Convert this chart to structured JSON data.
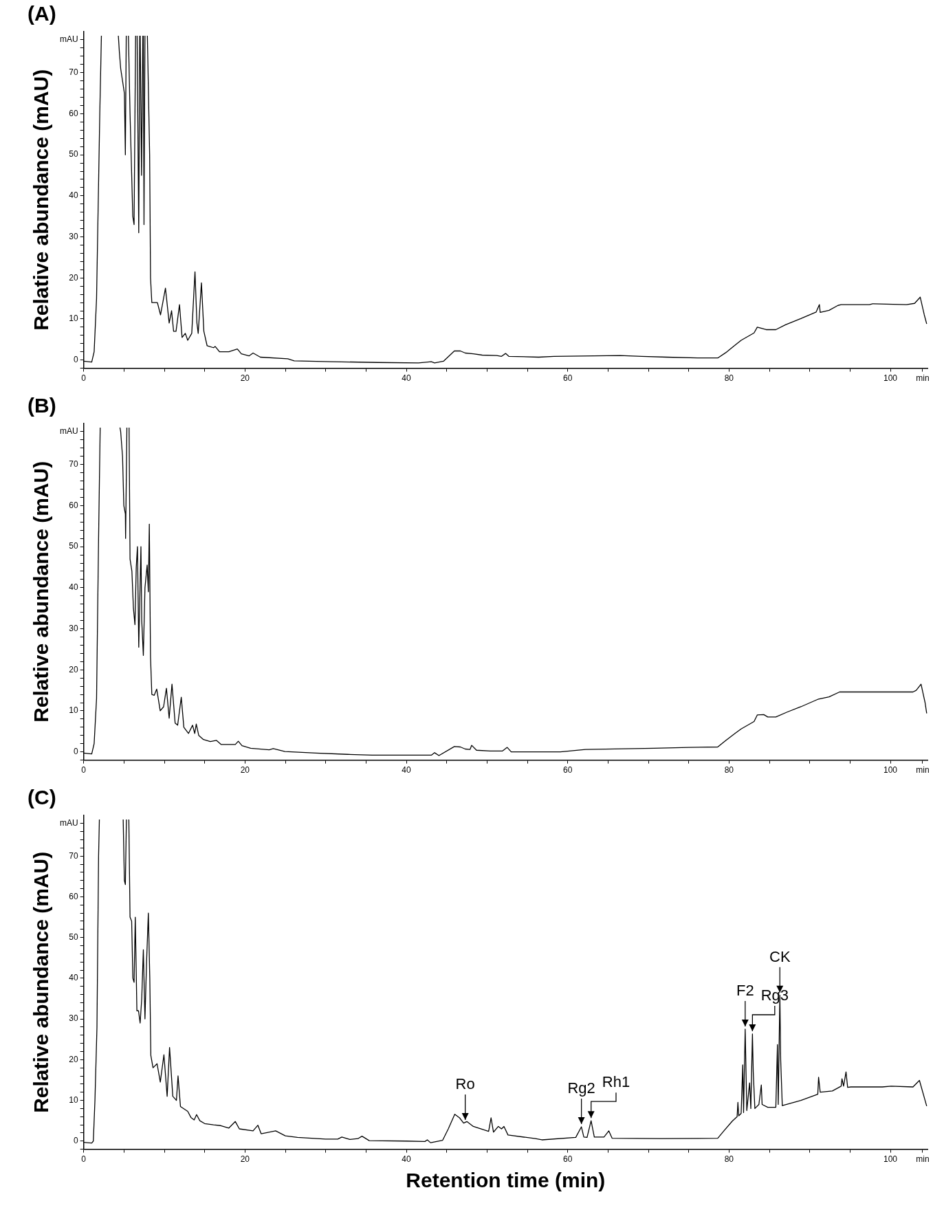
{
  "chart_data": [
    {
      "type": "line",
      "title": "(A)",
      "ylabel": "Relative abundance (mAU)",
      "color": "#000000",
      "grid": false,
      "legend": false,
      "marker": "none",
      "xlim": [
        0,
        104.6
      ],
      "ylim": [
        -2,
        80
      ],
      "xticks": [
        0,
        {
          "value": 5,
          "label": null
        },
        {
          "value": 10,
          "label": null
        },
        {
          "value": 15,
          "label": null
        },
        20,
        {
          "value": 25,
          "label": null
        },
        {
          "value": 30,
          "label": null
        },
        {
          "value": 35,
          "label": null
        },
        40,
        {
          "value": 45,
          "label": null
        },
        {
          "value": 50,
          "label": null
        },
        {
          "value": 55,
          "label": null
        },
        60,
        {
          "value": 65,
          "label": null
        },
        {
          "value": 70,
          "label": null
        },
        {
          "value": 75,
          "label": null
        },
        80,
        {
          "value": 85,
          "label": null
        },
        {
          "value": 90,
          "label": null
        },
        {
          "value": 95,
          "label": null
        },
        100,
        {
          "value": 104,
          "label": "min"
        }
      ],
      "yticks": [
        {
          "value": -2,
          "label": null
        },
        0,
        {
          "value": 2,
          "label": null
        },
        {
          "value": 4,
          "label": null
        },
        {
          "value": 6,
          "label": null
        },
        {
          "value": 8,
          "label": null
        },
        10,
        {
          "value": 12,
          "label": null
        },
        {
          "value": 14,
          "label": null
        },
        {
          "value": 16,
          "label": null
        },
        {
          "value": 18,
          "label": null
        },
        20,
        {
          "value": 22,
          "label": null
        },
        {
          "value": 24,
          "label": null
        },
        {
          "value": 26,
          "label": null
        },
        {
          "value": 28,
          "label": null
        },
        30,
        {
          "value": 32,
          "label": null
        },
        {
          "value": 34,
          "label": null
        },
        {
          "value": 36,
          "label": null
        },
        {
          "value": 38,
          "label": null
        },
        40,
        {
          "value": 42,
          "label": null
        },
        {
          "value": 44,
          "label": null
        },
        {
          "value": 46,
          "label": null
        },
        {
          "value": 48,
          "label": null
        },
        50,
        {
          "value": 52,
          "label": null
        },
        {
          "value": 54,
          "label": null
        },
        {
          "value": 56,
          "label": null
        },
        {
          "value": 58,
          "label": null
        },
        60,
        {
          "value": 62,
          "label": null
        },
        {
          "value": 64,
          "label": null
        },
        {
          "value": 66,
          "label": null
        },
        {
          "value": 68,
          "label": null
        },
        70,
        {
          "value": 72,
          "label": null
        },
        {
          "value": 74,
          "label": null
        },
        {
          "value": 76,
          "label": null
        },
        {
          "value": 78,
          "label": "mAU"
        }
      ],
      "x": [
        0,
        1.0,
        1.3,
        1.6,
        2.0,
        2.2,
        3.2,
        4.3,
        4.43,
        4.59,
        5.05,
        5.17,
        5.28,
        5.4,
        5.55,
        5.75,
        6.09,
        6.25,
        6.44,
        6.53,
        6.63,
        6.83,
        6.95,
        6.98,
        7.01,
        7.17,
        7.34,
        7.37,
        7.4,
        7.48,
        7.6,
        7.75,
        7.9,
        8.18,
        8.29,
        8.45,
        9.14,
        9.53,
        10.14,
        10.6,
        10.9,
        11.15,
        11.45,
        11.88,
        12.2,
        12.6,
        12.9,
        13.4,
        13.8,
        14.04,
        14.2,
        14.6,
        14.9,
        15.3,
        16.1,
        16.3,
        16.85,
        18,
        19.05,
        19.55,
        20.5,
        21,
        21.9,
        25.3,
        26.1,
        30.7,
        36.5,
        41.5,
        43.1,
        43.5,
        44.6,
        45.95,
        46.7,
        47.3,
        48.3,
        49.4,
        51.2,
        51.8,
        52.3,
        52.7,
        56.4,
        58.3,
        66.5,
        69.2,
        72.3,
        76.1,
        78.6,
        79.6,
        80.8,
        81.5,
        83.1,
        83.5,
        84.6,
        85.8,
        87,
        88.9,
        90.8,
        91.2,
        91.3,
        92.4,
        93.5,
        93.9,
        97.4,
        97.8,
        102,
        103,
        103.7,
        104.2,
        104.5
      ],
      "values": [
        -0.3,
        -0.5,
        2,
        15,
        60,
        79,
        null,
        79,
        75,
        71,
        65,
        50,
        79,
        null,
        79,
        60,
        35,
        33,
        79,
        null,
        79,
        31,
        79,
        null,
        79,
        45,
        79,
        null,
        79,
        33,
        79,
        null,
        79,
        50,
        20,
        14,
        14,
        11,
        17.5,
        9,
        12,
        7,
        7,
        13.5,
        5.5,
        6.5,
        4.8,
        6.5,
        21.5,
        9,
        6.5,
        18.8,
        7,
        3.5,
        3,
        3.3,
        2,
        2,
        2.7,
        1.5,
        1,
        1.7,
        0.7,
        0.3,
        -0.2,
        -0.4,
        -0.6,
        -0.7,
        -0.4,
        -0.7,
        -0.3,
        2.2,
        2.2,
        1.7,
        1.5,
        1.2,
        1.1,
        0.9,
        1.6,
        0.9,
        0.7,
        0.9,
        1.1,
        0.9,
        0.7,
        0.5,
        0.5,
        1.8,
        3.7,
        4.8,
        6.6,
        8.0,
        7.4,
        7.4,
        8.6,
        10.1,
        11.7,
        13.5,
        11.6,
        12.1,
        13.3,
        13.5,
        13.5,
        13.7,
        13.5,
        13.8,
        15.3,
        11,
        8.8
      ]
    },
    {
      "type": "line",
      "title": "(B)",
      "ylabel": "Relative abundance (mAU)",
      "color": "#000000",
      "grid": false,
      "legend": false,
      "marker": "none",
      "xlim": [
        0,
        104.6
      ],
      "ylim": [
        -2,
        80
      ],
      "xticks": [
        0,
        {
          "value": 5,
          "label": null
        },
        {
          "value": 10,
          "label": null
        },
        {
          "value": 15,
          "label": null
        },
        20,
        {
          "value": 25,
          "label": null
        },
        {
          "value": 30,
          "label": null
        },
        {
          "value": 35,
          "label": null
        },
        40,
        {
          "value": 45,
          "label": null
        },
        {
          "value": 50,
          "label": null
        },
        {
          "value": 55,
          "label": null
        },
        60,
        {
          "value": 65,
          "label": null
        },
        {
          "value": 70,
          "label": null
        },
        {
          "value": 75,
          "label": null
        },
        80,
        {
          "value": 85,
          "label": null
        },
        {
          "value": 90,
          "label": null
        },
        {
          "value": 95,
          "label": null
        },
        100,
        {
          "value": 104,
          "label": "min"
        }
      ],
      "yticks": [
        {
          "value": -2,
          "label": null
        },
        0,
        {
          "value": 2,
          "label": null
        },
        {
          "value": 4,
          "label": null
        },
        {
          "value": 6,
          "label": null
        },
        {
          "value": 8,
          "label": null
        },
        10,
        {
          "value": 12,
          "label": null
        },
        {
          "value": 14,
          "label": null
        },
        {
          "value": 16,
          "label": null
        },
        {
          "value": 18,
          "label": null
        },
        20,
        {
          "value": 22,
          "label": null
        },
        {
          "value": 24,
          "label": null
        },
        {
          "value": 26,
          "label": null
        },
        {
          "value": 28,
          "label": null
        },
        30,
        {
          "value": 32,
          "label": null
        },
        {
          "value": 34,
          "label": null
        },
        {
          "value": 36,
          "label": null
        },
        {
          "value": 38,
          "label": null
        },
        40,
        {
          "value": 42,
          "label": null
        },
        {
          "value": 44,
          "label": null
        },
        {
          "value": 46,
          "label": null
        },
        {
          "value": 48,
          "label": null
        },
        50,
        {
          "value": 52,
          "label": null
        },
        {
          "value": 54,
          "label": null
        },
        {
          "value": 56,
          "label": null
        },
        {
          "value": 58,
          "label": null
        },
        60,
        {
          "value": 62,
          "label": null
        },
        {
          "value": 64,
          "label": null
        },
        {
          "value": 66,
          "label": null
        },
        {
          "value": 68,
          "label": null
        },
        70,
        {
          "value": 72,
          "label": null
        },
        {
          "value": 74,
          "label": null
        },
        {
          "value": 76,
          "label": null
        },
        {
          "value": 78,
          "label": "mAU"
        }
      ],
      "x": [
        0,
        1.0,
        1.3,
        1.6,
        1.85,
        2.05,
        3.3,
        4.5,
        4.59,
        4.82,
        4.98,
        5.17,
        5.2,
        5.36,
        5.5,
        5.63,
        5.75,
        5.98,
        6.17,
        6.36,
        6.52,
        6.67,
        6.83,
        7.1,
        7.2,
        7.4,
        7.6,
        7.87,
        8.02,
        8.14,
        8.29,
        8.45,
        8.75,
        9.06,
        9.49,
        9.91,
        10.26,
        10.6,
        10.95,
        11.34,
        11.65,
        12.1,
        12.42,
        13,
        13.5,
        13.77,
        13.96,
        14.27,
        14.85,
        15.7,
        16.47,
        17.05,
        18.8,
        19.17,
        19.63,
        20.7,
        23,
        23.5,
        24.95,
        28.8,
        32.7,
        35.75,
        43.1,
        43.5,
        44.04,
        45.95,
        46.7,
        47.3,
        47.9,
        48.1,
        48.7,
        50.4,
        51.9,
        52.5,
        53,
        59.1,
        62.2,
        70.7,
        75,
        78.6,
        79.6,
        80.8,
        81.5,
        83.1,
        83.5,
        84.3,
        84.8,
        85.8,
        87.2,
        88.9,
        91,
        92.4,
        93.7,
        102.8,
        103.2,
        103.8,
        104.3,
        104.5
      ],
      "values": [
        -0.3,
        -0.5,
        2,
        13,
        52,
        79,
        null,
        79,
        78,
        72,
        60,
        58,
        52,
        79,
        null,
        79,
        47,
        44,
        35,
        31,
        45,
        50,
        25.5,
        50,
        32,
        23.5,
        40,
        45.5,
        39,
        55.5,
        23,
        14,
        13.8,
        15.3,
        10,
        11,
        15.5,
        8.2,
        16.5,
        7,
        6.5,
        13.3,
        6,
        4.5,
        6.5,
        4.5,
        6.8,
        4,
        3,
        2.5,
        2.8,
        1.8,
        1.8,
        2.6,
        1.5,
        0.9,
        0.5,
        0.8,
        0.1,
        -0.3,
        -0.6,
        -0.8,
        -0.8,
        -0.2,
        -0.9,
        1.3,
        1.2,
        0.7,
        0.6,
        1.6,
        0.4,
        0.2,
        0.2,
        1.1,
        0,
        0,
        0.6,
        0.9,
        1.1,
        1.2,
        2.8,
        4.6,
        5.6,
        7.4,
        9,
        9.1,
        8.5,
        8.5,
        9.7,
        11,
        12.8,
        13.4,
        14.6,
        14.6,
        15,
        16.5,
        12,
        9.4
      ]
    },
    {
      "type": "line",
      "title": "(C)",
      "ylabel": "Relative abundance (mAU)",
      "xlabel": "Retention time (min)",
      "color": "#000000",
      "grid": false,
      "legend": false,
      "marker": "none",
      "xlim": [
        0,
        104.6
      ],
      "ylim": [
        -2,
        80
      ],
      "xticks": [
        0,
        {
          "value": 5,
          "label": null
        },
        {
          "value": 10,
          "label": null
        },
        {
          "value": 15,
          "label": null
        },
        20,
        {
          "value": 25,
          "label": null
        },
        {
          "value": 30,
          "label": null
        },
        {
          "value": 35,
          "label": null
        },
        40,
        {
          "value": 45,
          "label": null
        },
        {
          "value": 50,
          "label": null
        },
        {
          "value": 55,
          "label": null
        },
        60,
        {
          "value": 65,
          "label": null
        },
        {
          "value": 70,
          "label": null
        },
        {
          "value": 75,
          "label": null
        },
        80,
        {
          "value": 85,
          "label": null
        },
        {
          "value": 90,
          "label": null
        },
        {
          "value": 95,
          "label": null
        },
        100,
        {
          "value": 104,
          "label": "min"
        }
      ],
      "yticks": [
        {
          "value": -2,
          "label": null
        },
        0,
        {
          "value": 2,
          "label": null
        },
        {
          "value": 4,
          "label": null
        },
        {
          "value": 6,
          "label": null
        },
        {
          "value": 8,
          "label": null
        },
        10,
        {
          "value": 12,
          "label": null
        },
        {
          "value": 14,
          "label": null
        },
        {
          "value": 16,
          "label": null
        },
        {
          "value": 18,
          "label": null
        },
        20,
        {
          "value": 22,
          "label": null
        },
        {
          "value": 24,
          "label": null
        },
        {
          "value": 26,
          "label": null
        },
        {
          "value": 28,
          "label": null
        },
        30,
        {
          "value": 32,
          "label": null
        },
        {
          "value": 34,
          "label": null
        },
        {
          "value": 36,
          "label": null
        },
        {
          "value": 38,
          "label": null
        },
        40,
        {
          "value": 42,
          "label": null
        },
        {
          "value": 44,
          "label": null
        },
        {
          "value": 46,
          "label": null
        },
        {
          "value": 48,
          "label": null
        },
        50,
        {
          "value": 52,
          "label": null
        },
        {
          "value": 54,
          "label": null
        },
        {
          "value": 56,
          "label": null
        },
        {
          "value": 58,
          "label": null
        },
        60,
        {
          "value": 62,
          "label": null
        },
        {
          "value": 64,
          "label": null
        },
        {
          "value": 66,
          "label": null
        },
        {
          "value": 68,
          "label": null
        },
        70,
        {
          "value": 72,
          "label": null
        },
        {
          "value": 74,
          "label": null
        },
        {
          "value": 76,
          "label": null
        },
        {
          "value": 78,
          "label": "mAU"
        }
      ],
      "x": [
        0,
        1.0,
        1.2,
        1.4,
        1.65,
        1.85,
        1.95,
        3.4,
        4.9,
        5.05,
        5.17,
        5.3,
        5.45,
        5.6,
        5.75,
        5.95,
        6.1,
        6.25,
        6.4,
        6.6,
        6.8,
        7.0,
        7.2,
        7.4,
        7.6,
        7.8,
        8.02,
        8.2,
        8.33,
        8.6,
        9.1,
        9.5,
        9.95,
        10.35,
        10.65,
        11.05,
        11.5,
        11.7,
        12.0,
        12.9,
        13.3,
        13.7,
        14.0,
        14.4,
        15.0,
        16.1,
        17.0,
        18.0,
        18.8,
        19.3,
        21.0,
        21.6,
        22.0,
        23.8,
        25.0,
        26.5,
        30.0,
        31.5,
        32.0,
        33.0,
        34.0,
        34.5,
        35.4,
        40,
        42.3,
        42.6,
        43,
        44.5,
        45.2,
        46,
        46.6,
        47.1,
        47.5,
        48.3,
        50.2,
        50.5,
        50.8,
        51.4,
        51.8,
        52.1,
        52.6,
        56,
        56.8,
        61,
        61.7,
        62,
        62.4,
        62.9,
        63.3,
        64.5,
        65.1,
        65.5,
        71.5,
        78.6,
        79.4,
        80.4,
        81,
        81.1,
        81.2,
        81.5,
        81.7,
        81.8,
        82,
        82.2,
        82.55,
        82.7,
        82.9,
        83,
        83.2,
        83.7,
        84,
        84.1,
        84.8,
        85.8,
        86,
        86.1,
        86.3,
        86.4,
        86.6,
        88.9,
        91,
        91.1,
        91.3,
        92.8,
        93.9,
        94,
        94.2,
        94.5,
        94.7,
        95.1,
        99,
        100.1,
        102.8,
        103.6,
        104.5
      ],
      "values": [
        -0.3,
        -0.5,
        0,
        10,
        28,
        70,
        79,
        null,
        79,
        64,
        63,
        79,
        null,
        79,
        55,
        54,
        40,
        39,
        55,
        32,
        32,
        29,
        35,
        47,
        30,
        44,
        56,
        40,
        21,
        18,
        19,
        14.5,
        21.2,
        11,
        23,
        11,
        10,
        16,
        8.5,
        7.3,
        5.8,
        5.2,
        6.5,
        5,
        4.3,
        4,
        3.8,
        3.2,
        4.8,
        3,
        2.5,
        3.9,
        1.8,
        2.5,
        1.3,
        0.9,
        0.5,
        0.5,
        1.0,
        0.4,
        0.6,
        1.2,
        0.1,
        0,
        -0.1,
        0.3,
        -0.4,
        0.2,
        3,
        6.6,
        5.7,
        4.4,
        4.8,
        3.6,
        2.4,
        5.7,
        2.2,
        3.6,
        3.0,
        3.6,
        1.5,
        0.6,
        0.3,
        0.9,
        3.5,
        1.0,
        0.9,
        5.0,
        1.0,
        1.0,
        2.5,
        0.7,
        0.6,
        0.7,
        2.6,
        4.9,
        6.0,
        9.5,
        6.2,
        6.8,
        18.7,
        7,
        27.5,
        7.5,
        14.3,
        8,
        26.3,
        17,
        8,
        9,
        13.8,
        9,
        8.3,
        8.3,
        23.7,
        9,
        35.8,
        20,
        8.7,
        10,
        11.5,
        15.7,
        12,
        12.3,
        13.5,
        15.3,
        13.5,
        17,
        13.2,
        13.3,
        13.3,
        13.5,
        13.3,
        14.9,
        8.6
      ],
      "annotations": [
        {
          "text": "Ro",
          "x": 47.3,
          "y": 4.5
        },
        {
          "text": "Rg2",
          "x": 61.7,
          "y": 3.5
        },
        {
          "text": "Rh1",
          "x": 62.9,
          "y": 5.0
        },
        {
          "text": "F2",
          "x": 82,
          "y": 27.5
        },
        {
          "text": "Rg3",
          "x": 82.9,
          "y": 26.3
        },
        {
          "text": "CK",
          "x": 86.3,
          "y": 35.8
        }
      ]
    }
  ]
}
